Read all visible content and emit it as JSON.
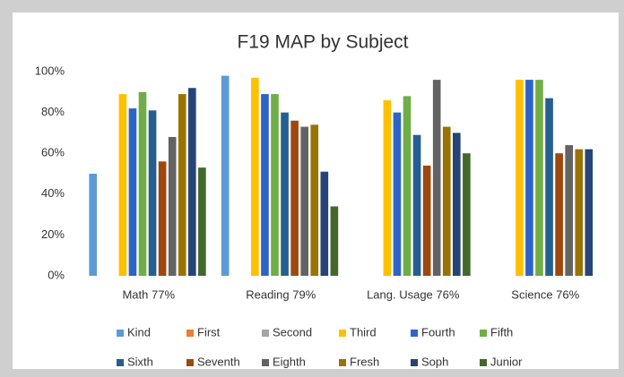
{
  "chart_data": {
    "type": "bar",
    "title": "F19 MAP by Subject",
    "categories": [
      "Math 77%",
      "Reading 79%",
      "Lang. Usage 76%",
      "Science 76%"
    ],
    "ylim": [
      0,
      100
    ],
    "yticks": [
      {
        "value": 0,
        "label": "0%"
      },
      {
        "value": 20,
        "label": "20%"
      },
      {
        "value": 40,
        "label": "40%"
      },
      {
        "value": 60,
        "label": "60%"
      },
      {
        "value": 80,
        "label": "80%"
      },
      {
        "value": 100,
        "label": "100%"
      }
    ],
    "grid": false,
    "legend": "bottom",
    "series": [
      {
        "name": "Kind",
        "color": "#5b9bd5",
        "values": [
          50,
          98,
          null,
          null
        ]
      },
      {
        "name": "First",
        "color": "#ed7d31",
        "values": [
          null,
          null,
          null,
          null
        ]
      },
      {
        "name": "Second",
        "color": "#a5a5a5",
        "values": [
          null,
          null,
          null,
          null
        ]
      },
      {
        "name": "Third",
        "color": "#ffc000",
        "values": [
          89,
          97,
          86,
          96
        ]
      },
      {
        "name": "Fourth",
        "color": "#2e64c8",
        "values": [
          82,
          89,
          80,
          96
        ]
      },
      {
        "name": "Fifth",
        "color": "#70ad47",
        "values": [
          90,
          89,
          88,
          96
        ]
      },
      {
        "name": "Sixth",
        "color": "#255e91",
        "values": [
          81,
          80,
          69,
          87
        ]
      },
      {
        "name": "Seventh",
        "color": "#9e480e",
        "values": [
          56,
          76,
          54,
          60
        ]
      },
      {
        "name": "Eighth",
        "color": "#636363",
        "values": [
          68,
          73,
          96,
          64
        ]
      },
      {
        "name": "Fresh",
        "color": "#997300",
        "values": [
          89,
          74,
          73,
          62
        ]
      },
      {
        "name": "Soph",
        "color": "#264478",
        "values": [
          92,
          51,
          70,
          62
        ]
      },
      {
        "name": "Junior",
        "color": "#43682b",
        "values": [
          53,
          34,
          60,
          null
        ]
      }
    ]
  }
}
